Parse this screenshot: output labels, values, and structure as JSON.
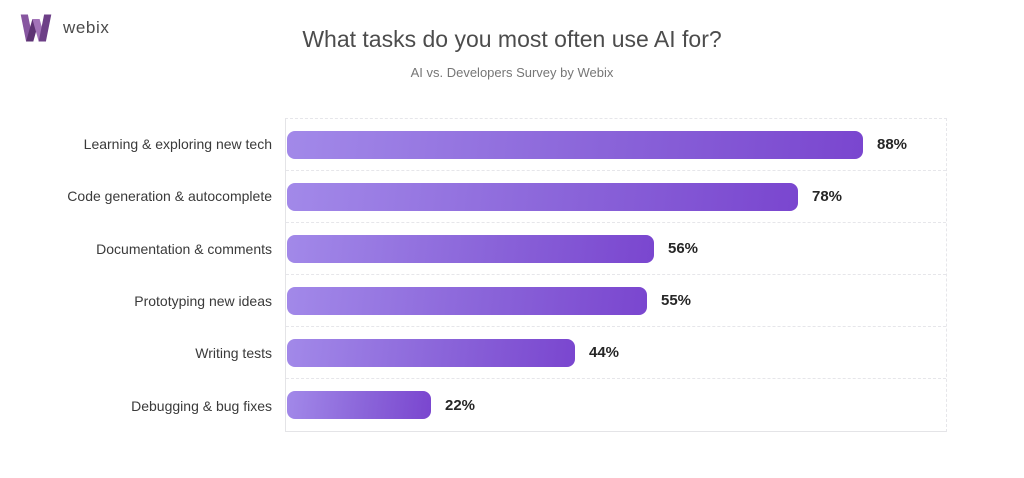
{
  "logo": {
    "brand": "webix",
    "brand_color": "#4b4b4b",
    "mark_colors": [
      "#8756a0",
      "#5e3374",
      "#a273b8",
      "#6d3f87"
    ]
  },
  "header": {
    "title": "What tasks do you most often use AI for?",
    "subtitle": "AI vs. Developers Survey by Webix"
  },
  "chart_data": {
    "type": "bar",
    "orientation": "horizontal",
    "title": "What tasks do you most often use AI for?",
    "subtitle": "AI vs. Developers Survey by Webix",
    "categories": [
      "Learning & exploring new tech",
      "Code generation & autocomplete",
      "Documentation & comments",
      "Prototyping new ideas",
      "Writing tests",
      "Debugging & bug fixes"
    ],
    "values": [
      88,
      78,
      56,
      55,
      44,
      22
    ],
    "value_suffix": "%",
    "xlim": [
      0,
      100
    ],
    "grid": "dashed horizontal row separators, dashed top/right frame, solid left/bottom axis",
    "legend": "none",
    "bar_gradient": [
      "#a289e9",
      "#7a46cf"
    ],
    "value_label_color": "#262626",
    "category_label_color": "#3a3a3a"
  }
}
